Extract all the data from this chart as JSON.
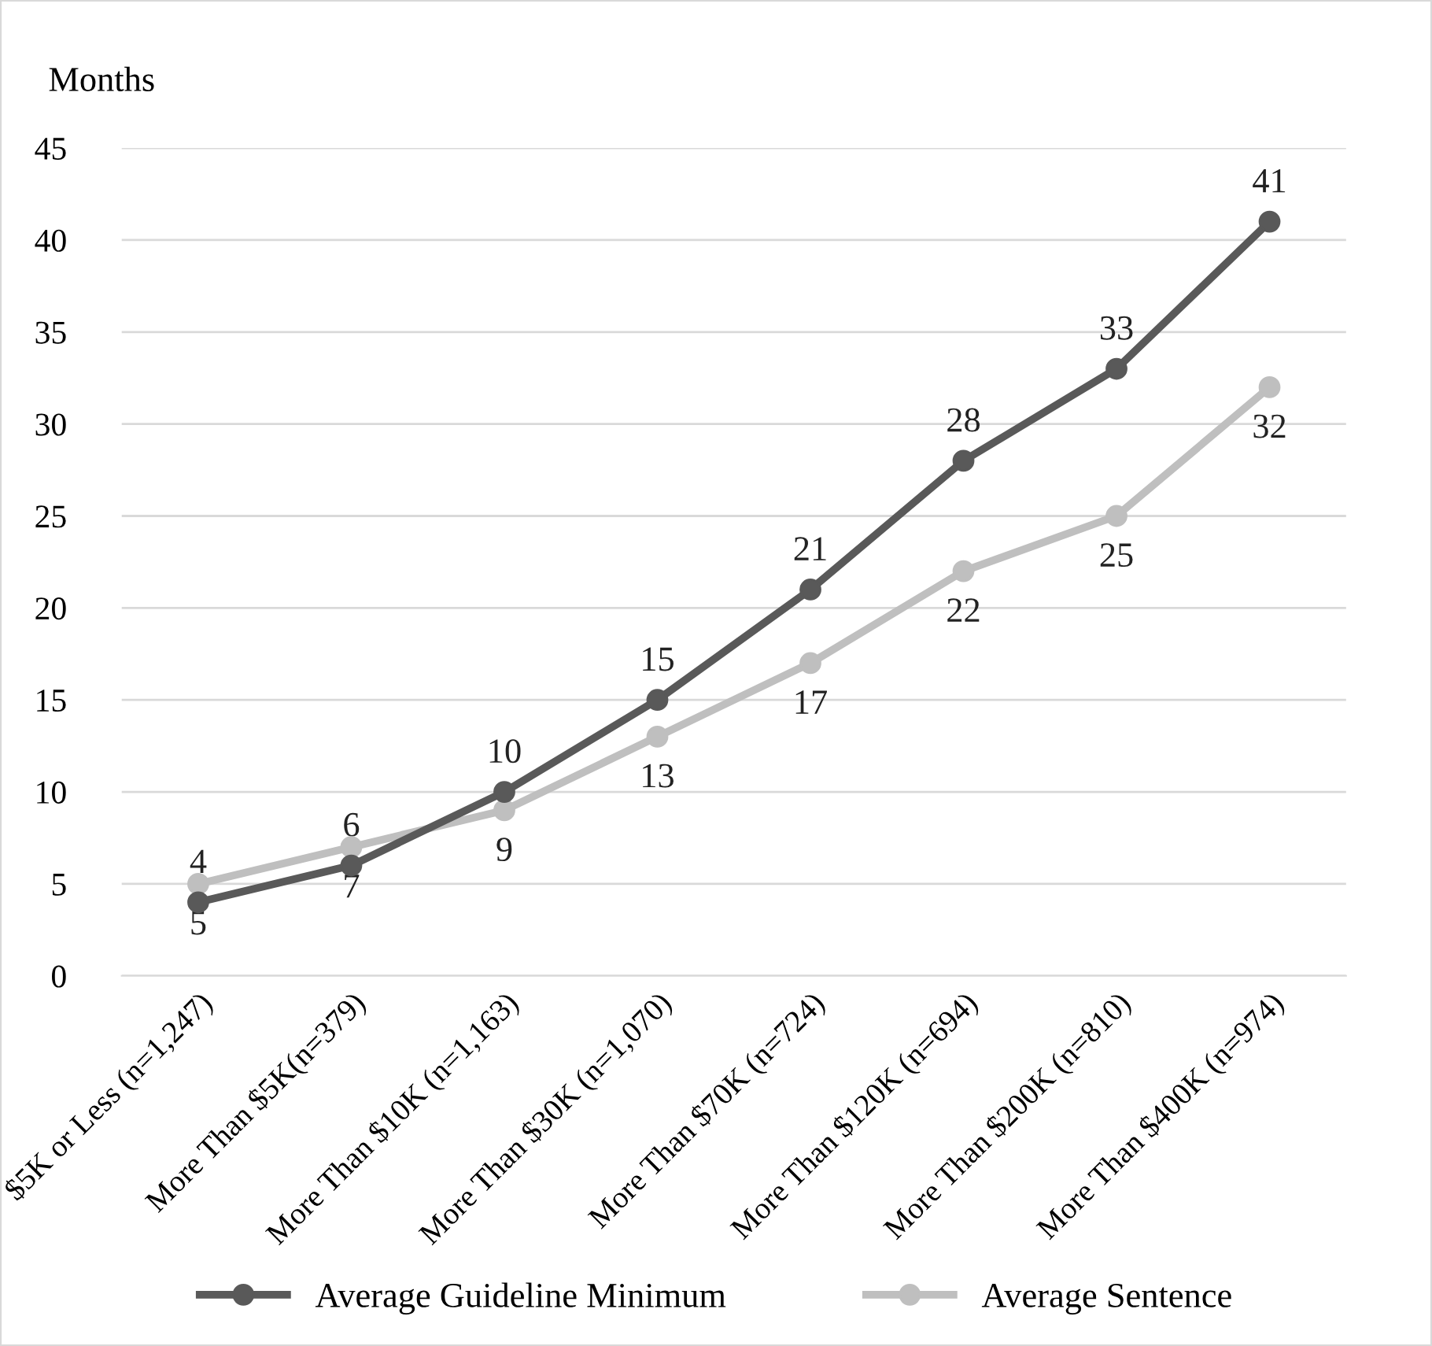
{
  "chart_data": {
    "type": "line",
    "ylabel": "Months",
    "categories": [
      "$5K or Less (n=1,247)",
      "More Than $5K(n=379)",
      "More Than $10K (n=1,163)",
      "More Than $30K (n=1,070)",
      "More Than $70K (n=724)",
      "More Than $120K (n=694)",
      "More Than $200K (n=810)",
      "More Than $400K (n=974)"
    ],
    "series": [
      {
        "name": "Average Guideline Minimum",
        "color": "#595959",
        "values": [
          4,
          6,
          10,
          15,
          21,
          28,
          33,
          41
        ]
      },
      {
        "name": "Average Sentence",
        "color": "#bfbfbf",
        "values": [
          5,
          7,
          9,
          13,
          17,
          22,
          25,
          32
        ]
      }
    ],
    "ylim": [
      0,
      45
    ],
    "yticks": [
      0,
      5,
      10,
      15,
      20,
      25,
      30,
      35,
      40,
      45
    ],
    "grid": "y",
    "legend": "bottom",
    "marker": "circle",
    "line_style": "solid",
    "data_labels": true
  }
}
